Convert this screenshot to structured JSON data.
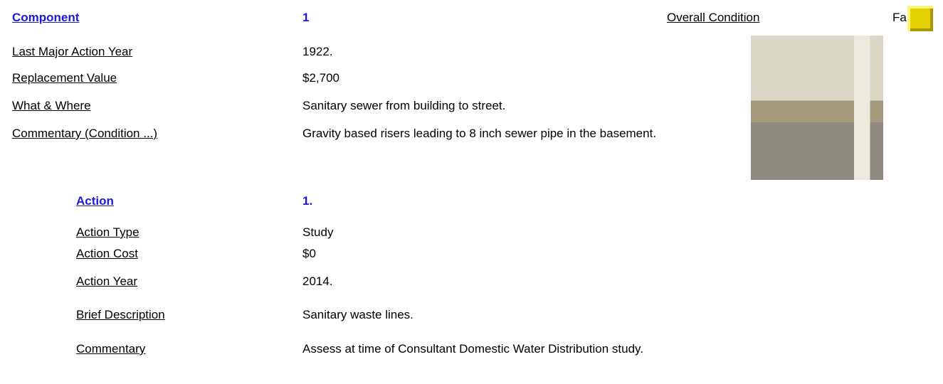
{
  "component": {
    "label": "Component",
    "number": "1",
    "condition_label": "Overall Condition",
    "condition": "Fair"
  },
  "fields": [
    {
      "label": "Last Major Action Year",
      "value": "1922."
    },
    {
      "label": "Replacement Value",
      "value": "$2,700"
    },
    {
      "label": "What & Where",
      "value": "Sanitary sewer from building to street."
    },
    {
      "label": "Commentary (Condition ...)",
      "value": "Gravity based risers leading to 8 inch sewer pipe in the basement."
    }
  ],
  "action": {
    "label": "Action",
    "number": "1.",
    "fields": [
      {
        "label": "Action Type",
        "value": "Study"
      },
      {
        "label": "Action Cost",
        "value": "$0"
      },
      {
        "label": "Action Year",
        "value": "2014."
      },
      {
        "label": "Brief Description",
        "value": "Sanitary waste lines."
      },
      {
        "label": "Commentary",
        "value": "Assess at time of Consultant Domestic Water Distribution study."
      }
    ]
  }
}
